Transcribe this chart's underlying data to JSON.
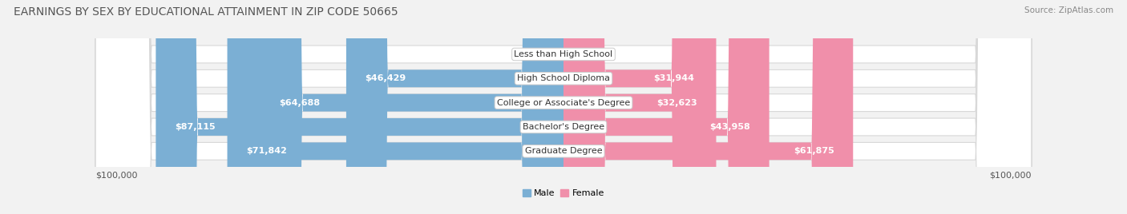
{
  "title": "EARNINGS BY SEX BY EDUCATIONAL ATTAINMENT IN ZIP CODE 50665",
  "source": "Source: ZipAtlas.com",
  "categories": [
    "Less than High School",
    "High School Diploma",
    "College or Associate's Degree",
    "Bachelor's Degree",
    "Graduate Degree"
  ],
  "male_values": [
    0,
    46429,
    64688,
    87115,
    71842
  ],
  "female_values": [
    0,
    31944,
    32623,
    43958,
    61875
  ],
  "male_color": "#7bafd4",
  "female_color": "#f08faa",
  "male_label": "Male",
  "female_label": "Female",
  "max_value": 100000,
  "x_label_left": "$100,000",
  "x_label_right": "$100,000",
  "background_color": "#f2f2f2",
  "pill_color": "#ffffff",
  "pill_edge_color": "#d8d8d8",
  "title_fontsize": 10,
  "label_fontsize": 8,
  "tick_fontsize": 8,
  "source_fontsize": 7.5
}
